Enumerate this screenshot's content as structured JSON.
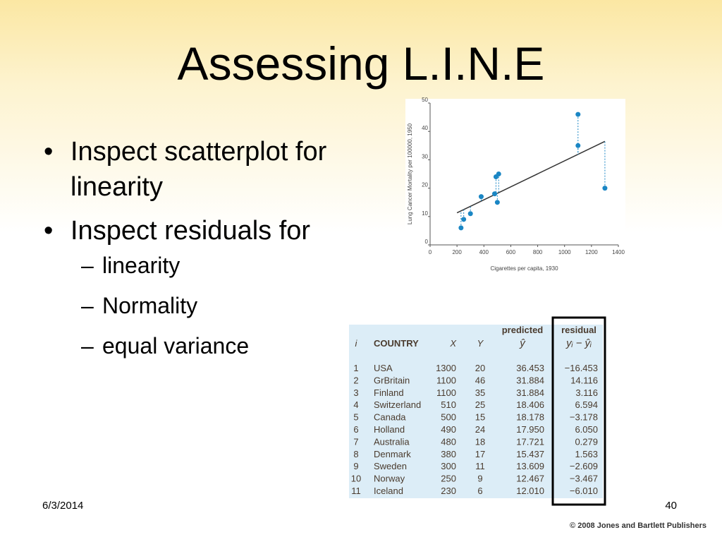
{
  "title": "Assessing L.I.N.E",
  "bullets": [
    {
      "text": "Inspect scatterplot for linearity"
    },
    {
      "text": "Inspect residuals for",
      "sub": [
        "linearity",
        "Normality",
        "equal variance"
      ]
    }
  ],
  "chart_data": {
    "type": "scatter",
    "x_label": "Cigarettes per capita, 1930",
    "y_label": "Lung Cancer Mortality per 100000, 1950",
    "x": [
      1300,
      1100,
      1100,
      510,
      500,
      490,
      480,
      380,
      300,
      250,
      230
    ],
    "values": [
      20,
      46,
      35,
      25,
      15,
      24,
      18,
      17,
      11,
      9,
      6
    ],
    "predicted": [
      36.453,
      31.884,
      31.884,
      18.406,
      18.178,
      17.95,
      17.721,
      15.437,
      13.609,
      12.467,
      12.01
    ],
    "fit_line": {
      "x": [
        200,
        1300
      ],
      "y": [
        11.3,
        36.5
      ]
    },
    "color": "#1a86c4",
    "line_color": "#333333",
    "xlim": [
      0,
      1400
    ],
    "xticks": [
      0,
      200,
      400,
      600,
      800,
      1000,
      1200,
      1400
    ],
    "ylim": [
      0,
      50
    ],
    "yticks": [
      0,
      10,
      20,
      30,
      40,
      50
    ]
  },
  "table": {
    "header_top": [
      "predicted",
      "residual"
    ],
    "header": [
      "i",
      "COUNTRY",
      "X",
      "Y",
      "ŷ",
      "yᵢ − ŷᵢ"
    ],
    "rows": [
      [
        "1",
        "USA",
        "1300",
        "20",
        "36.453",
        "−16.453"
      ],
      [
        "2",
        "GrBritain",
        "1100",
        "46",
        "31.884",
        "14.116"
      ],
      [
        "3",
        "Finland",
        "1100",
        "35",
        "31.884",
        "3.116"
      ],
      [
        "4",
        "Switzerland",
        "510",
        "25",
        "18.406",
        "6.594"
      ],
      [
        "5",
        "Canada",
        "500",
        "15",
        "18.178",
        "−3.178"
      ],
      [
        "6",
        "Holland",
        "490",
        "24",
        "17.950",
        "6.050"
      ],
      [
        "7",
        "Australia",
        "480",
        "18",
        "17.721",
        "0.279"
      ],
      [
        "8",
        "Denmark",
        "380",
        "17",
        "15.437",
        "1.563"
      ],
      [
        "9",
        "Sweden",
        "300",
        "11",
        "13.609",
        "−2.609"
      ],
      [
        "10",
        "Norway",
        "250",
        "9",
        "12.467",
        "−3.467"
      ],
      [
        "11",
        "Iceland",
        "230",
        "6",
        "12.010",
        "−6.010"
      ]
    ]
  },
  "footer": {
    "date": "6/3/2014",
    "page": "40",
    "copyright": "© 2008 Jones and Bartlett Publishers"
  }
}
